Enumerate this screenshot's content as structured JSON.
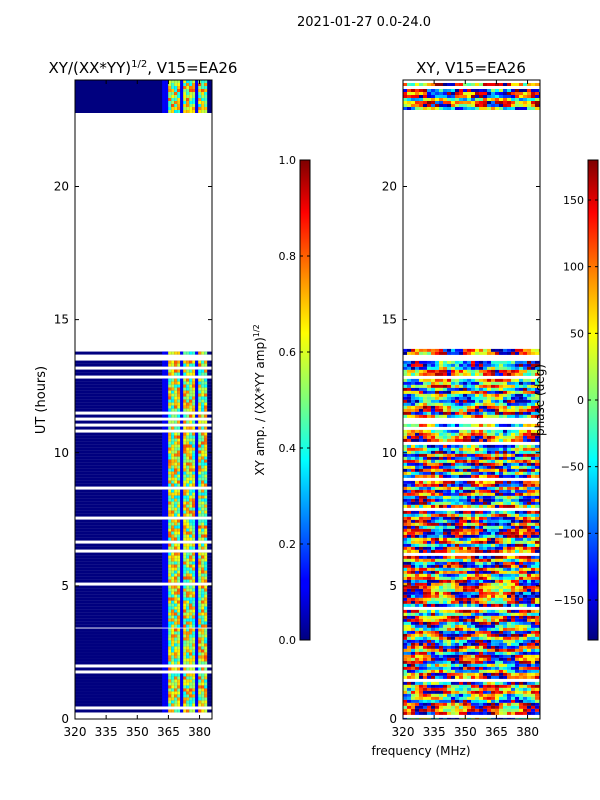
{
  "suptitle": "2021-01-27 0.0-24.0",
  "xlabel": "frequency (MHz)",
  "chart_data": [
    {
      "type": "heatmap",
      "title_main": "XY/(XX*YY)",
      "title_sup": "1/2",
      "title_tail": ", V15=EA26",
      "ylabel": "UT (hours)",
      "xlim": [
        320,
        386
      ],
      "ylim": [
        0,
        24
      ],
      "x_ticks": [
        320,
        335,
        350,
        365,
        380
      ],
      "y_ticks": [
        0,
        5,
        10,
        15,
        20
      ],
      "active_band_mhz": [
        362,
        383
      ],
      "data_blocks_hours": [
        [
          0.3,
          3.4
        ],
        [
          3.5,
          13.8
        ],
        [
          22.8,
          24.0
        ]
      ],
      "colorbar": {
        "label_main": "XY amp. / (XX*YY amp)",
        "label_sup": "1/2",
        "range": [
          0.0,
          1.0
        ],
        "ticks": [
          "0.0",
          "0.2",
          "0.4",
          "0.6",
          "0.8",
          "1.0"
        ],
        "tick_values": [
          0.0,
          0.2,
          0.4,
          0.6,
          0.8,
          1.0
        ]
      }
    },
    {
      "type": "heatmap",
      "title": "XY, V15=EA26",
      "xlim": [
        320,
        386
      ],
      "ylim": [
        0,
        24
      ],
      "x_ticks": [
        320,
        335,
        350,
        365,
        380
      ],
      "y_ticks": [
        0,
        5,
        10,
        15,
        20
      ],
      "data_blocks_hours": [
        [
          0.0,
          13.9
        ],
        [
          22.9,
          24.0
        ]
      ],
      "colorbar": {
        "label": "phase (deg)",
        "range": [
          -180,
          180
        ],
        "ticks": [
          "−150",
          "−100",
          "−50",
          "0",
          "50",
          "100",
          "150"
        ],
        "tick_values": [
          -150,
          -100,
          -50,
          0,
          50,
          100,
          150
        ]
      }
    }
  ]
}
